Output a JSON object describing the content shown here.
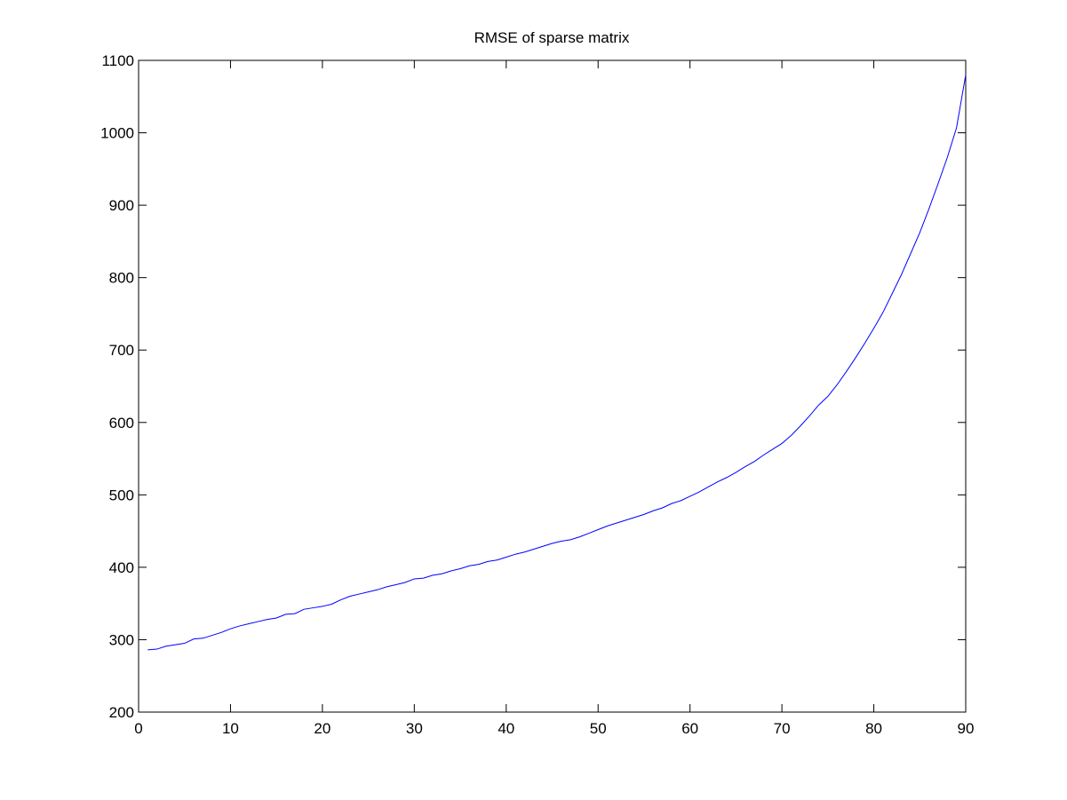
{
  "chart_data": {
    "type": "line",
    "title": "RMSE of sparse matrix",
    "xlabel": "",
    "ylabel": "",
    "xlim": [
      0,
      90
    ],
    "ylim": [
      200,
      1100
    ],
    "x_ticks": [
      0,
      10,
      20,
      30,
      40,
      50,
      60,
      70,
      80,
      90
    ],
    "y_ticks": [
      200,
      300,
      400,
      500,
      600,
      700,
      800,
      900,
      1000,
      1100
    ],
    "grid": false,
    "legend": "none",
    "series": [
      {
        "color": "#0000ff",
        "x": [
          1,
          2,
          3,
          4,
          5,
          6,
          7,
          8,
          9,
          10,
          11,
          12,
          13,
          14,
          15,
          16,
          17,
          18,
          19,
          20,
          21,
          22,
          23,
          24,
          25,
          26,
          27,
          28,
          29,
          30,
          31,
          32,
          33,
          34,
          35,
          36,
          37,
          38,
          39,
          40,
          41,
          42,
          43,
          44,
          45,
          46,
          47,
          48,
          49,
          50,
          51,
          52,
          53,
          54,
          55,
          56,
          57,
          58,
          59,
          60,
          61,
          62,
          63,
          64,
          65,
          66,
          67,
          68,
          69,
          70,
          71,
          72,
          73,
          74,
          75,
          76,
          77,
          78,
          79,
          80,
          81,
          82,
          83,
          84,
          85,
          86,
          87,
          88,
          89,
          90
        ],
        "y": [
          286,
          287,
          291,
          293,
          295,
          301,
          302,
          306,
          310,
          315,
          319,
          322,
          325,
          328,
          330,
          335,
          336,
          342,
          344,
          346,
          349,
          355,
          360,
          363,
          366,
          369,
          373,
          376,
          379,
          384,
          385,
          389,
          391,
          395,
          398,
          402,
          404,
          408,
          410,
          414,
          418,
          421,
          425,
          429,
          433,
          436,
          438,
          442,
          447,
          452,
          457,
          461,
          465,
          469,
          473,
          478,
          482,
          488,
          492,
          498,
          504,
          511,
          518,
          524,
          531,
          539,
          546,
          555,
          563,
          571,
          582,
          595,
          609,
          624,
          636,
          652,
          670,
          689,
          709,
          730,
          752,
          778,
          804,
          833,
          862,
          895,
          930,
          966,
          1007,
          1080
        ]
      }
    ]
  }
}
